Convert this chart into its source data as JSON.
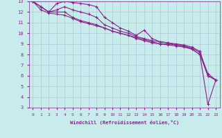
{
  "xlabel": "Windchill (Refroidissement éolien,°C)",
  "background_color": "#c8ecec",
  "grid_color": "#b0c8d8",
  "line_color": "#882288",
  "xlim": [
    -0.5,
    23.5
  ],
  "ylim": [
    3,
    13
  ],
  "xticks": [
    0,
    1,
    2,
    3,
    4,
    5,
    6,
    7,
    8,
    9,
    10,
    11,
    12,
    13,
    14,
    15,
    16,
    17,
    18,
    19,
    20,
    21,
    22,
    23
  ],
  "yticks": [
    3,
    4,
    5,
    6,
    7,
    8,
    9,
    10,
    11,
    12,
    13
  ],
  "lines": [
    [
      13.0,
      12.5,
      12.0,
      12.8,
      13.0,
      12.9,
      12.8,
      12.7,
      12.5,
      11.5,
      11.0,
      10.5,
      10.2,
      9.8,
      10.3,
      9.5,
      9.2,
      9.1,
      8.9,
      8.8,
      8.5,
      8.0,
      3.3,
      5.6
    ],
    [
      13.0,
      12.5,
      12.0,
      12.2,
      12.5,
      12.2,
      12.0,
      11.8,
      11.5,
      10.8,
      10.5,
      10.2,
      10.0,
      9.7,
      9.5,
      9.3,
      9.2,
      9.1,
      9.0,
      8.9,
      8.7,
      8.3,
      6.0,
      5.6
    ],
    [
      13.0,
      12.5,
      12.0,
      12.0,
      12.0,
      11.5,
      11.2,
      11.0,
      10.8,
      10.5,
      10.2,
      10.0,
      9.8,
      9.6,
      9.4,
      9.2,
      9.0,
      9.0,
      8.9,
      8.8,
      8.6,
      8.2,
      6.2,
      5.6
    ],
    [
      13.0,
      12.2,
      11.9,
      11.8,
      11.7,
      11.4,
      11.1,
      10.9,
      10.7,
      10.5,
      10.2,
      10.0,
      9.8,
      9.5,
      9.3,
      9.1,
      9.0,
      8.9,
      8.8,
      8.7,
      8.5,
      8.0,
      6.0,
      5.6
    ]
  ]
}
